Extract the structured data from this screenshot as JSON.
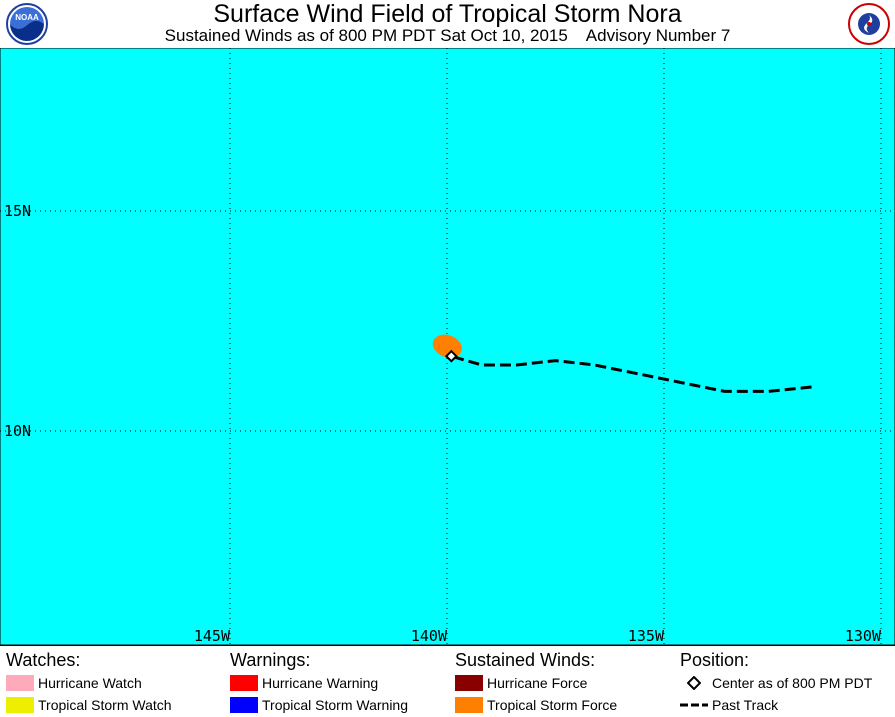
{
  "header": {
    "title": "Surface Wind Field of Tropical Storm Nora",
    "subtitle": "Sustained Winds as of 800 PM PDT Sat Oct 10, 2015    Advisory Number 7",
    "left_logo_text": "NOAA",
    "right_logo_text": "NATIONAL WEATHER SERVICE"
  },
  "map": {
    "ocean_color": "#00ffff",
    "lat_labels": [
      "15N",
      "10N"
    ],
    "lon_labels": [
      "145W",
      "140W",
      "135W",
      "130W"
    ],
    "storm_center": {
      "lon": -139.9,
      "lat": 11.7
    },
    "tropical_storm_force_color": "#ff8000",
    "past_track": [
      {
        "lon": -131.6,
        "lat": 11.0
      },
      {
        "lon": -132.6,
        "lat": 10.9
      },
      {
        "lon": -133.6,
        "lat": 10.9
      },
      {
        "lon": -134.6,
        "lat": 11.1
      },
      {
        "lon": -135.6,
        "lat": 11.3
      },
      {
        "lon": -136.6,
        "lat": 11.5
      },
      {
        "lon": -137.5,
        "lat": 11.6
      },
      {
        "lon": -138.4,
        "lat": 11.5
      },
      {
        "lon": -139.2,
        "lat": 11.5
      },
      {
        "lon": -139.9,
        "lat": 11.7
      }
    ]
  },
  "legend": {
    "watches": {
      "heading": "Watches:",
      "items": [
        {
          "label": "Hurricane Watch",
          "color": "#ffaabb"
        },
        {
          "label": "Tropical Storm Watch",
          "color": "#eeee00"
        }
      ]
    },
    "warnings": {
      "heading": "Warnings:",
      "items": [
        {
          "label": "Hurricane Warning",
          "color": "#ff0000"
        },
        {
          "label": "Tropical Storm Warning",
          "color": "#0000ff"
        }
      ]
    },
    "winds": {
      "heading": "Sustained Winds:",
      "items": [
        {
          "label": "Hurricane Force",
          "color": "#880000"
        },
        {
          "label": "Tropical Storm Force",
          "color": "#ff8000"
        }
      ]
    },
    "position": {
      "heading": "Position:",
      "center_label": "Center as of 800 PM PDT",
      "track_label": "Past Track"
    }
  }
}
